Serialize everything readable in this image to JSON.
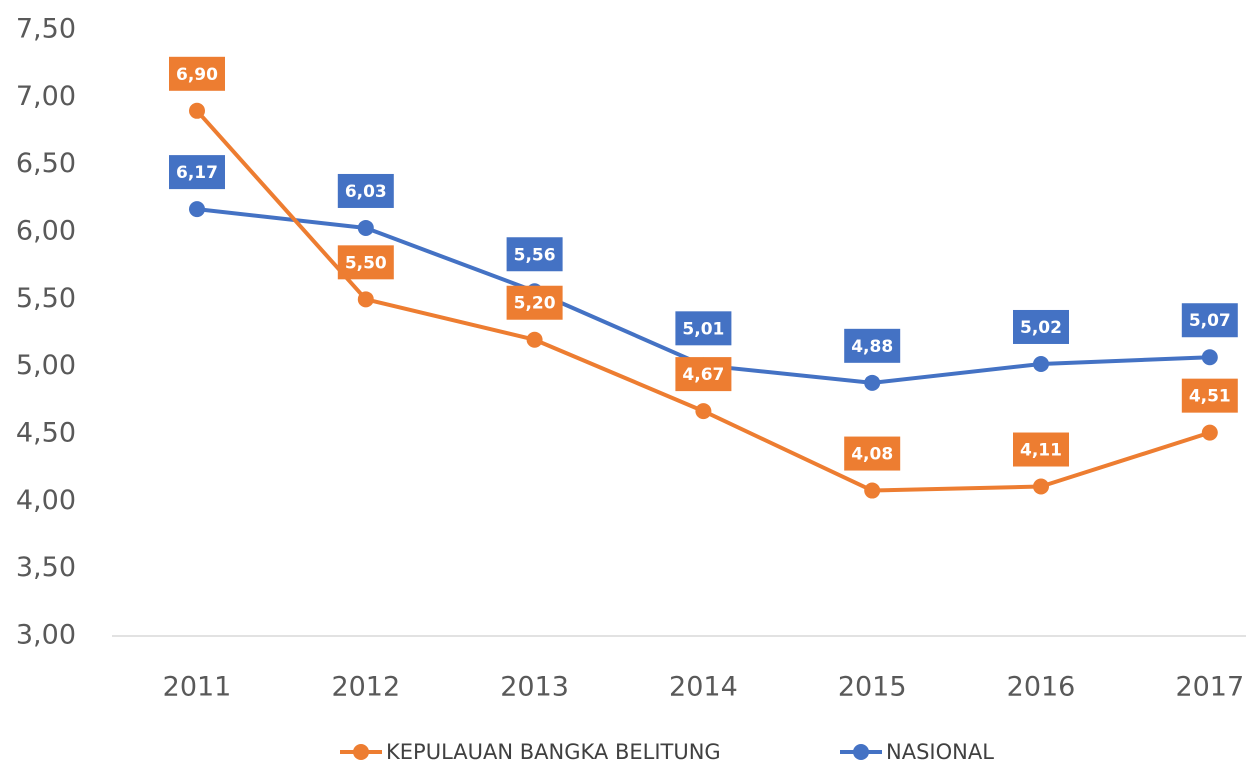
{
  "chart_data": {
    "type": "line",
    "categories": [
      "2011",
      "2012",
      "2013",
      "2014",
      "2015",
      "2016",
      "2017"
    ],
    "series": [
      {
        "name": "KEPULAUAN BANGKA BELITUNG",
        "color": "#ed7d31",
        "values": [
          6.9,
          5.5,
          5.2,
          4.67,
          4.08,
          4.11,
          4.51
        ],
        "value_labels": [
          "6,90",
          "5,50",
          "5,20",
          "4,67",
          "4,08",
          "4,11",
          "4,51"
        ]
      },
      {
        "name": "NASIONAL",
        "color": "#4472c4",
        "values": [
          6.17,
          6.03,
          5.56,
          5.01,
          4.88,
          5.02,
          5.07
        ],
        "value_labels": [
          "6,17",
          "6,03",
          "5,56",
          "5,01",
          "4,88",
          "5,02",
          "5,07"
        ]
      }
    ],
    "ylim": [
      3.0,
      7.5
    ],
    "yticks": [
      {
        "value": 3.0,
        "label": "3,00"
      },
      {
        "value": 3.5,
        "label": "3,50"
      },
      {
        "value": 4.0,
        "label": "4,00"
      },
      {
        "value": 4.5,
        "label": "4,50"
      },
      {
        "value": 5.0,
        "label": "5,00"
      },
      {
        "value": 5.5,
        "label": "5,50"
      },
      {
        "value": 6.0,
        "label": "6,00"
      },
      {
        "value": 6.5,
        "label": "6,50"
      },
      {
        "value": 7.0,
        "label": "7,00"
      },
      {
        "value": 7.5,
        "label": "7,50"
      }
    ],
    "grid": false,
    "legend": "bottom"
  }
}
